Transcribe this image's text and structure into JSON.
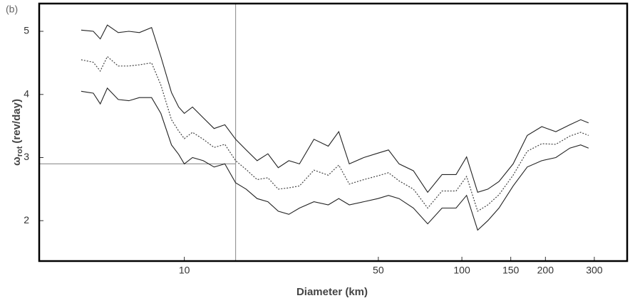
{
  "chart_data": {
    "type": "line",
    "panel_label": "(b)",
    "x_label": "Diameter (km)",
    "y_label": {
      "symbol": "ω",
      "subscript": "rot",
      "unit": "(rev/day)"
    },
    "x": [
      4.25,
      4.7,
      4.98,
      5.28,
      5.78,
      6.31,
      6.89,
      7.62,
      8.23,
      8.99,
      9.54,
      10,
      10.7,
      11.7,
      12.8,
      14.0,
      15.3,
      16.7,
      18.3,
      20.0,
      21.8,
      23.8,
      26.0,
      29.3,
      33.0,
      36.0,
      39.3,
      44.3,
      49.8,
      54.4,
      59.4,
      66.9,
      75.3,
      84.8,
      95.3,
      104,
      114,
      124,
      136,
      153,
      172,
      194,
      218,
      245,
      268,
      286
    ],
    "series": [
      {
        "color": "#222222",
        "style": "solid",
        "values": [
          5.02,
          5.0,
          4.88,
          5.1,
          4.98,
          5.0,
          4.98,
          5.06,
          4.6,
          4.03,
          3.8,
          3.7,
          3.8,
          3.63,
          3.46,
          3.52,
          3.29,
          3.12,
          2.95,
          3.06,
          2.84,
          2.95,
          2.9,
          3.29,
          3.18,
          3.41,
          2.9,
          3.0,
          3.07,
          3.12,
          2.9,
          2.79,
          2.45,
          2.73,
          2.73,
          3.01,
          2.45,
          2.5,
          2.62,
          2.9,
          3.35,
          3.49,
          3.41,
          3.52,
          3.6,
          3.55
        ]
      },
      {
        "color": "#444444",
        "style": "dotted",
        "values": [
          4.55,
          4.51,
          4.37,
          4.6,
          4.45,
          4.45,
          4.47,
          4.5,
          4.15,
          3.6,
          3.42,
          3.3,
          3.4,
          3.29,
          3.16,
          3.21,
          2.95,
          2.81,
          2.65,
          2.68,
          2.5,
          2.52,
          2.55,
          2.8,
          2.72,
          2.88,
          2.58,
          2.65,
          2.71,
          2.76,
          2.63,
          2.5,
          2.2,
          2.47,
          2.47,
          2.7,
          2.15,
          2.25,
          2.41,
          2.72,
          3.1,
          3.22,
          3.21,
          3.34,
          3.4,
          3.35
        ]
      },
      {
        "color": "#222222",
        "style": "solid",
        "values": [
          4.05,
          4.02,
          3.85,
          4.1,
          3.92,
          3.9,
          3.95,
          3.95,
          3.7,
          3.2,
          3.05,
          2.9,
          3.0,
          2.95,
          2.85,
          2.9,
          2.6,
          2.5,
          2.35,
          2.3,
          2.15,
          2.1,
          2.2,
          2.3,
          2.25,
          2.35,
          2.25,
          2.3,
          2.35,
          2.4,
          2.35,
          2.2,
          1.95,
          2.2,
          2.2,
          2.4,
          1.85,
          2.0,
          2.2,
          2.55,
          2.85,
          2.95,
          3.0,
          3.15,
          3.2,
          3.15
        ]
      }
    ],
    "reference_lines": {
      "x": 15.3,
      "y": 2.9,
      "color": "#999999"
    },
    "x_log": true,
    "xlim": [
      3.0,
      394
    ],
    "xticks": [
      10,
      50,
      100,
      150,
      200,
      300
    ],
    "ylim": [
      1.36,
      5.44
    ],
    "yticks": [
      2,
      3,
      4,
      5
    ]
  }
}
